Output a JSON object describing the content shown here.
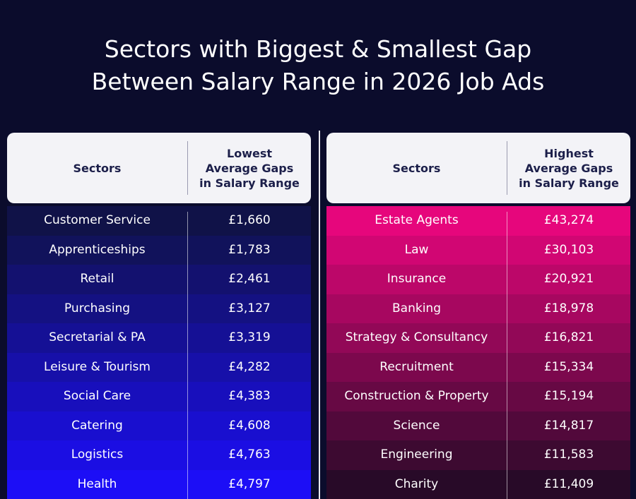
{
  "title": [
    "Sectors with Biggest & Smallest Gap",
    "Between Salary Range in 2026 Job Ads"
  ],
  "tables": [
    {
      "header": [
        "Sectors",
        [
          "Lowest",
          "Average Gaps",
          "in Salary Range"
        ]
      ],
      "rows": [
        [
          "Customer Service",
          "£1,660"
        ],
        [
          "Apprenticeships",
          "£1,783"
        ],
        [
          "Retail",
          "£2,461"
        ],
        [
          "Purchasing",
          "£3,127"
        ],
        [
          "Secretarial & PA",
          "£3,319"
        ],
        [
          "Leisure & Tourism",
          "£4,282"
        ],
        [
          "Social Care",
          "£4,383"
        ],
        [
          "Catering",
          "£4,608"
        ],
        [
          "Logistics",
          "£4,763"
        ],
        [
          "Health",
          "£4,797"
        ]
      ]
    },
    {
      "header": [
        "Sectors",
        [
          "Highest",
          "Average Gaps",
          "in Salary Range"
        ]
      ],
      "rows": [
        [
          "Estate Agents",
          "£43,274"
        ],
        [
          "Law",
          "£30,103"
        ],
        [
          "Insurance",
          "£20,921"
        ],
        [
          "Banking",
          "£18,978"
        ],
        [
          "Strategy & Consultancy",
          "£16,821"
        ],
        [
          "Recruitment",
          "£15,334"
        ],
        [
          "Construction & Property",
          "£15,194"
        ],
        [
          "Science",
          "£14,817"
        ],
        [
          "Engineering",
          "£11,583"
        ],
        [
          "Charity",
          "£11,409"
        ]
      ]
    }
  ]
}
